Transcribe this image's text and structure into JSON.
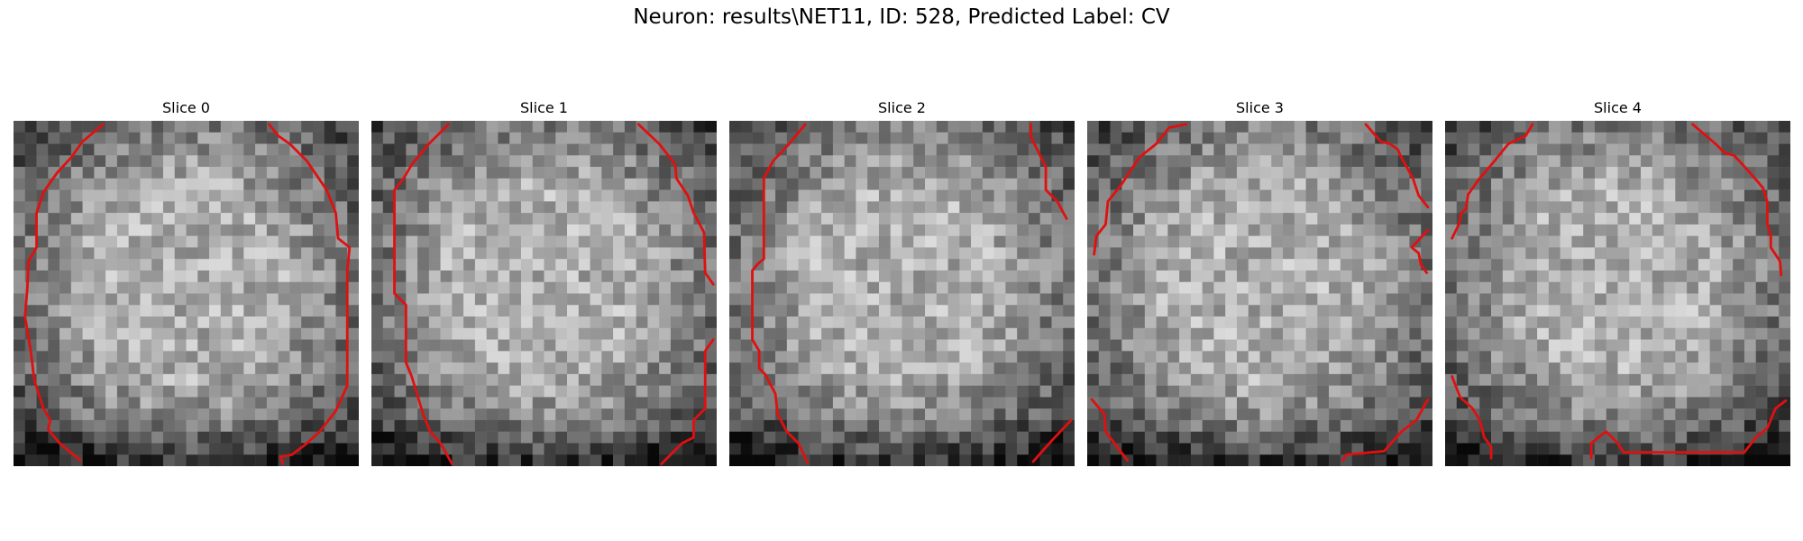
{
  "figure": {
    "title": "Neuron: results\\NET11, ID: 528, Predicted Label: CV"
  },
  "panels": [
    {
      "title": "Slice 0"
    },
    {
      "title": "Slice 1"
    },
    {
      "title": "Slice 2"
    },
    {
      "title": "Slice 3"
    },
    {
      "title": "Slice 4"
    }
  ],
  "colors": {
    "contour": "#e01010",
    "background": "#ffffff"
  }
}
